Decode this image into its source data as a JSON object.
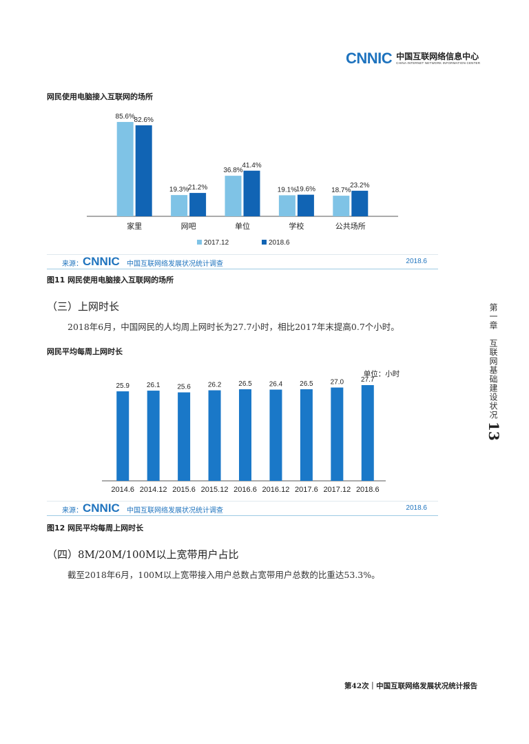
{
  "header": {
    "logo_mark": "CNNIC",
    "logo_cn": "中国互联网络信息中心",
    "logo_en": "CHINA INTERNET NETWORK INFORMATION CENTER"
  },
  "chart1": {
    "caption_top": "网民使用电脑接入互联网的场所",
    "figure_caption": "图11  网民使用电脑接入互联网的场所",
    "source_label": "来源：",
    "source_logo": "CNNIC",
    "source_title": "中国互联网络发展状况统计调查",
    "source_date": "2018.6"
  },
  "section3": {
    "heading": "（三）上网时长",
    "paragraph": "2018年6月，中国网民的人均周上网时长为27.7小时，相比2017年末提高0.7个小时。"
  },
  "chart2": {
    "caption_top": "网民平均每周上网时长",
    "figure_caption": "图12  网民平均每周上网时长",
    "unit": "单位：小时",
    "source_label": "来源：",
    "source_logo": "CNNIC",
    "source_title": "中国互联网络发展状况统计调查",
    "source_date": "2018.6"
  },
  "section4": {
    "heading": "（四）8M/20M/100M以上宽带用户占比",
    "paragraph": "截至2018年6月，100M以上宽带接入用户总数占宽带用户总数的比重达53.3%。"
  },
  "side": {
    "chapter": "第一章　互联网基础建设状况",
    "page_number": "13"
  },
  "footer": {
    "text": "第42次｜中国互联网络发展状况统计报告"
  },
  "colors": {
    "light_blue": "#7fc3e6",
    "dark_blue": "#1164b4",
    "mid_blue": "#1a78c8",
    "brand_blue": "#1e73be"
  },
  "chart_data": [
    {
      "type": "bar",
      "categories": [
        "家里",
        "网吧",
        "单位",
        "学校",
        "公共场所"
      ],
      "series": [
        {
          "name": "2017.12",
          "values": [
            85.6,
            19.3,
            36.8,
            19.1,
            18.7
          ],
          "labels": [
            "85.6%",
            "19.3%",
            "36.8%",
            "19.1%",
            "18.7%"
          ],
          "color": "#7fc3e6"
        },
        {
          "name": "2018.6",
          "values": [
            82.6,
            21.2,
            41.4,
            19.6,
            23.2
          ],
          "labels": [
            "82.6%",
            "21.2%",
            "41.4%",
            "19.6%",
            "23.2%"
          ],
          "color": "#1164b4"
        }
      ],
      "ylim": [
        0,
        90
      ],
      "legend": "bottom",
      "grid": false
    },
    {
      "type": "bar",
      "categories": [
        "2014.6",
        "2014.12",
        "2015.6",
        "2015.12",
        "2016.6",
        "2016.12",
        "2017.6",
        "2017.12",
        "2018.6"
      ],
      "values": [
        25.9,
        26.1,
        25.6,
        26.2,
        26.5,
        26.4,
        26.5,
        27.0,
        27.7
      ],
      "labels": [
        "25.9",
        "26.1",
        "25.6",
        "26.2",
        "26.5",
        "26.4",
        "26.5",
        "27.0",
        "27.7"
      ],
      "ylim": [
        0,
        29.5
      ],
      "color": "#1a78c8",
      "grid": false
    }
  ]
}
